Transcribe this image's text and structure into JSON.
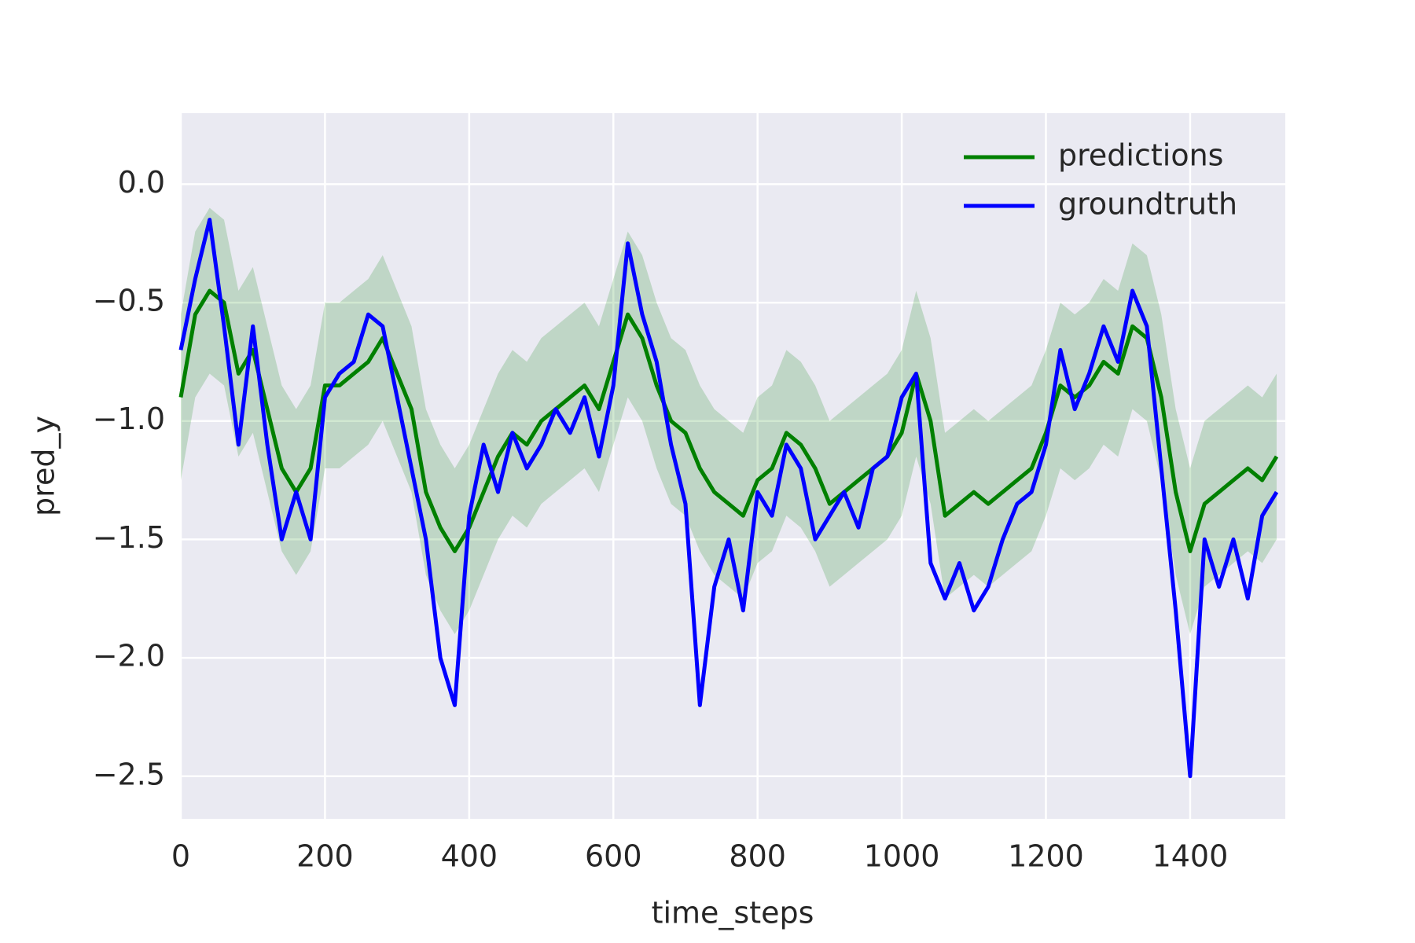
{
  "chart_data": {
    "type": "line",
    "xlabel": "time_steps",
    "ylabel": "pred_y",
    "x": [
      0,
      20,
      40,
      60,
      80,
      100,
      120,
      140,
      160,
      180,
      200,
      220,
      240,
      260,
      280,
      300,
      320,
      340,
      360,
      380,
      400,
      420,
      440,
      460,
      480,
      500,
      520,
      540,
      560,
      580,
      600,
      620,
      640,
      660,
      680,
      700,
      720,
      740,
      760,
      780,
      800,
      820,
      840,
      860,
      880,
      900,
      920,
      940,
      960,
      980,
      1000,
      1020,
      1040,
      1060,
      1080,
      1100,
      1120,
      1140,
      1160,
      1180,
      1200,
      1220,
      1240,
      1260,
      1280,
      1300,
      1320,
      1340,
      1360,
      1380,
      1400,
      1420,
      1440,
      1460,
      1480,
      1500,
      1520
    ],
    "series": [
      {
        "name": "predictions",
        "color": "#008000",
        "values": [
          -0.9,
          -0.55,
          -0.45,
          -0.5,
          -0.8,
          -0.7,
          -0.95,
          -1.2,
          -1.3,
          -1.2,
          -0.85,
          -0.85,
          -0.8,
          -0.75,
          -0.65,
          -0.8,
          -0.95,
          -1.3,
          -1.45,
          -1.55,
          -1.45,
          -1.3,
          -1.15,
          -1.05,
          -1.1,
          -1.0,
          -0.95,
          -0.9,
          -0.85,
          -0.95,
          -0.75,
          -0.55,
          -0.65,
          -0.85,
          -1.0,
          -1.05,
          -1.2,
          -1.3,
          -1.35,
          -1.4,
          -1.25,
          -1.2,
          -1.05,
          -1.1,
          -1.2,
          -1.35,
          -1.3,
          -1.25,
          -1.2,
          -1.15,
          -1.05,
          -0.8,
          -1.0,
          -1.4,
          -1.35,
          -1.3,
          -1.35,
          -1.3,
          -1.25,
          -1.2,
          -1.05,
          -0.85,
          -0.9,
          -0.85,
          -0.75,
          -0.8,
          -0.6,
          -0.65,
          -0.9,
          -1.3,
          -1.55,
          -1.35,
          -1.3,
          -1.25,
          -1.2,
          -1.25,
          -1.15
        ]
      },
      {
        "name": "groundtruth",
        "color": "#0000ff",
        "values": [
          -0.7,
          -0.4,
          -0.15,
          -0.6,
          -1.1,
          -0.6,
          -1.1,
          -1.5,
          -1.3,
          -1.5,
          -0.9,
          -0.8,
          -0.75,
          -0.55,
          -0.6,
          -0.9,
          -1.2,
          -1.5,
          -2.0,
          -2.2,
          -1.4,
          -1.1,
          -1.3,
          -1.05,
          -1.2,
          -1.1,
          -0.95,
          -1.05,
          -0.9,
          -1.15,
          -0.85,
          -0.25,
          -0.55,
          -0.75,
          -1.1,
          -1.35,
          -2.2,
          -1.7,
          -1.5,
          -1.8,
          -1.3,
          -1.4,
          -1.1,
          -1.2,
          -1.5,
          -1.4,
          -1.3,
          -1.45,
          -1.2,
          -1.15,
          -0.9,
          -0.8,
          -1.6,
          -1.75,
          -1.6,
          -1.8,
          -1.7,
          -1.5,
          -1.35,
          -1.3,
          -1.1,
          -0.7,
          -0.95,
          -0.8,
          -0.6,
          -0.75,
          -0.45,
          -0.6,
          -1.2,
          -1.8,
          -2.5,
          -1.5,
          -1.7,
          -1.5,
          -1.75,
          -1.4,
          -1.3
        ]
      }
    ],
    "band": {
      "color": "#008000",
      "lower": [
        -1.25,
        -0.9,
        -0.8,
        -0.85,
        -1.15,
        -1.05,
        -1.3,
        -1.55,
        -1.65,
        -1.55,
        -1.2,
        -1.2,
        -1.15,
        -1.1,
        -1.0,
        -1.15,
        -1.3,
        -1.65,
        -1.8,
        -1.9,
        -1.8,
        -1.65,
        -1.5,
        -1.4,
        -1.45,
        -1.35,
        -1.3,
        -1.25,
        -1.2,
        -1.3,
        -1.1,
        -0.9,
        -1.0,
        -1.2,
        -1.35,
        -1.4,
        -1.55,
        -1.65,
        -1.7,
        -1.75,
        -1.6,
        -1.55,
        -1.4,
        -1.45,
        -1.55,
        -1.7,
        -1.65,
        -1.6,
        -1.55,
        -1.5,
        -1.4,
        -1.15,
        -1.35,
        -1.75,
        -1.7,
        -1.65,
        -1.7,
        -1.65,
        -1.6,
        -1.55,
        -1.4,
        -1.2,
        -1.25,
        -1.2,
        -1.1,
        -1.15,
        -0.95,
        -1.0,
        -1.25,
        -1.65,
        -1.9,
        -1.7,
        -1.65,
        -1.6,
        -1.55,
        -1.6,
        -1.5
      ],
      "upper": [
        -0.55,
        -0.2,
        -0.1,
        -0.15,
        -0.45,
        -0.35,
        -0.6,
        -0.85,
        -0.95,
        -0.85,
        -0.5,
        -0.5,
        -0.45,
        -0.4,
        -0.3,
        -0.45,
        -0.6,
        -0.95,
        -1.1,
        -1.2,
        -1.1,
        -0.95,
        -0.8,
        -0.7,
        -0.75,
        -0.65,
        -0.6,
        -0.55,
        -0.5,
        -0.6,
        -0.4,
        -0.2,
        -0.3,
        -0.5,
        -0.65,
        -0.7,
        -0.85,
        -0.95,
        -1.0,
        -1.05,
        -0.9,
        -0.85,
        -0.7,
        -0.75,
        -0.85,
        -1.0,
        -0.95,
        -0.9,
        -0.85,
        -0.8,
        -0.7,
        -0.45,
        -0.65,
        -1.05,
        -1.0,
        -0.95,
        -1.0,
        -0.95,
        -0.9,
        -0.85,
        -0.7,
        -0.5,
        -0.55,
        -0.5,
        -0.4,
        -0.45,
        -0.25,
        -0.3,
        -0.55,
        -0.95,
        -1.2,
        -1.0,
        -0.95,
        -0.9,
        -0.85,
        -0.9,
        -0.8
      ]
    },
    "xlim": [
      0,
      1532
    ],
    "ylim": [
      -2.68,
      0.3
    ],
    "xticks": [
      0,
      200,
      400,
      600,
      800,
      1000,
      1200,
      1400
    ],
    "yticks": [
      {
        "value": -2.5,
        "label": "−2.5"
      },
      {
        "value": -2,
        "label": "−2.0"
      },
      {
        "value": -1.5,
        "label": "−1.5"
      },
      {
        "value": -1,
        "label": "−1.0"
      },
      {
        "value": -0.5,
        "label": "−0.5"
      },
      {
        "value": 0,
        "label": "0.0"
      }
    ],
    "grid": true,
    "legend": "upper right"
  }
}
